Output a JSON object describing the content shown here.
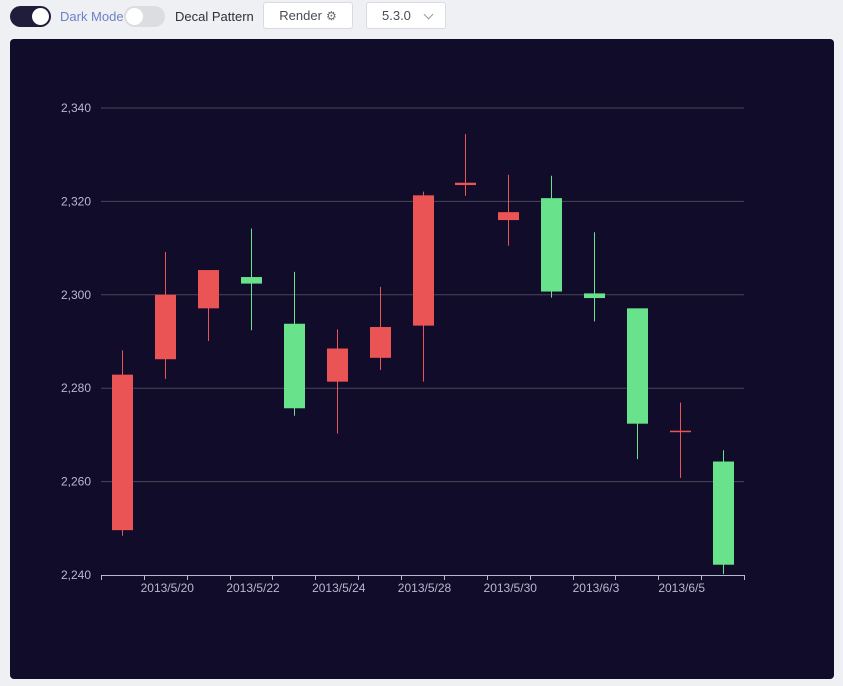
{
  "toolbar": {
    "dark_mode_label": "Dark Mode",
    "decal_label": "Decal Pattern",
    "render_label": "Render",
    "render_icon": "gear-icon",
    "version_value": "5.3.0",
    "dark_mode_on": true,
    "decal_on": false
  },
  "colors": {
    "background": "#100c2a",
    "up": "#eb5454",
    "down": "#47b262",
    "down_fill": "#68e28b",
    "grid": "#484753",
    "axis_text": "#b9b8ce"
  },
  "chart_data": {
    "type": "candlestick",
    "x_tick_labels": [
      "2013/5/20",
      "2013/5/22",
      "2013/5/24",
      "2013/5/28",
      "2013/5/30",
      "2013/6/3",
      "2013/6/5"
    ],
    "y_tick_labels": [
      "2,240",
      "2,260",
      "2,280",
      "2,300",
      "2,320",
      "2,340"
    ],
    "ylim": [
      2240,
      2340
    ],
    "grid": true,
    "series": [
      {
        "fields": [
          "date",
          "open",
          "close",
          "low",
          "high"
        ],
        "data": [
          [
            "2013/5/17",
            2249.6,
            2282.9,
            2248.4,
            2288.1
          ],
          [
            "2013/5/20",
            2286.2,
            2300.0,
            2282.0,
            2309.2
          ],
          [
            "2013/5/21",
            2297.1,
            2305.3,
            2290.1,
            2305.3
          ],
          [
            "2013/5/22",
            2303.8,
            2302.4,
            2292.4,
            2314.2
          ],
          [
            "2013/5/23",
            2293.8,
            2275.7,
            2274.1,
            2304.9
          ],
          [
            "2013/5/24",
            2281.4,
            2288.5,
            2270.3,
            2292.6
          ],
          [
            "2013/5/27",
            2286.5,
            2293.1,
            2283.9,
            2301.7
          ],
          [
            "2013/5/28",
            2293.4,
            2321.3,
            2281.4,
            2322.1
          ],
          [
            "2013/5/29",
            2323.5,
            2324.0,
            2321.2,
            2334.4
          ],
          [
            "2013/5/30",
            2316.0,
            2317.7,
            2310.5,
            2325.7
          ],
          [
            "2013/5/31",
            2320.7,
            2300.7,
            2299.4,
            2325.5
          ],
          [
            "2013/6/3",
            2300.3,
            2299.3,
            2294.3,
            2313.4
          ],
          [
            "2013/6/4",
            2297.1,
            2272.4,
            2264.8,
            2297.1
          ],
          [
            "2013/6/5",
            2270.7,
            2270.9,
            2260.8,
            2276.9
          ],
          [
            "2013/6/6",
            2264.3,
            2242.2,
            2240.2,
            2266.7
          ]
        ]
      }
    ]
  }
}
